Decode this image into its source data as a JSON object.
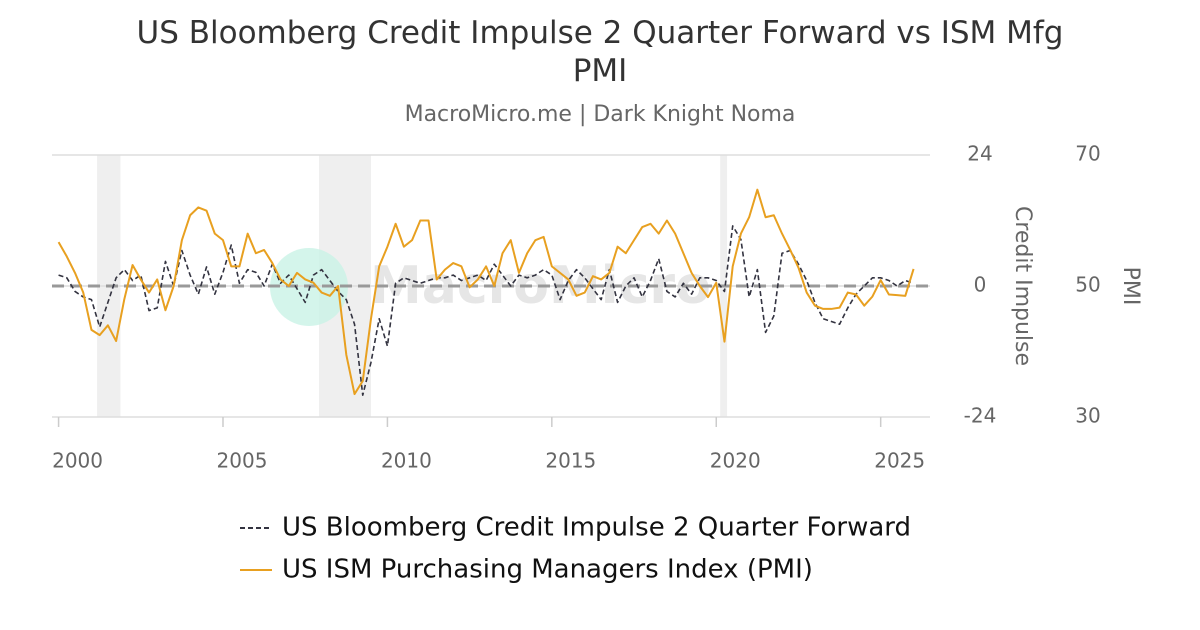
{
  "chart_data": {
    "type": "line",
    "title": "US Bloomberg Credit Impulse 2 Quarter Forward vs ISM Mfg PMI",
    "subtitle": "MacroMicro.me | Dark Knight Noma",
    "watermark": "MacroMicro",
    "y_label": "Credit Impulse",
    "y2_label": "PMI",
    "xlim": [
      1999.8,
      2026.5
    ],
    "xticks": [
      2000,
      2005,
      2010,
      2015,
      2020,
      2025
    ],
    "ylim": [
      -24,
      24
    ],
    "yticks": [
      -24,
      0,
      24
    ],
    "y2lim": [
      30,
      70
    ],
    "y2ticks": [
      30,
      50,
      70
    ],
    "grid": true,
    "recessions": [
      [
        2001.17,
        2001.88
      ],
      [
        2007.92,
        2009.5
      ],
      [
        2020.12,
        2020.33
      ]
    ],
    "x": [
      2000,
      2000.25,
      2000.5,
      2000.75,
      2001,
      2001.25,
      2001.5,
      2001.75,
      2002,
      2002.25,
      2002.5,
      2002.75,
      2003,
      2003.25,
      2003.5,
      2003.75,
      2004,
      2004.25,
      2004.5,
      2004.75,
      2005,
      2005.25,
      2005.5,
      2005.75,
      2006,
      2006.25,
      2006.5,
      2006.75,
      2007,
      2007.25,
      2007.5,
      2007.75,
      2008,
      2008.25,
      2008.5,
      2008.75,
      2009,
      2009.25,
      2009.5,
      2009.75,
      2010,
      2010.25,
      2010.5,
      2010.75,
      2011,
      2011.25,
      2011.5,
      2011.75,
      2012,
      2012.25,
      2012.5,
      2012.75,
      2013,
      2013.25,
      2013.5,
      2013.75,
      2014,
      2014.25,
      2014.5,
      2014.75,
      2015,
      2015.25,
      2015.5,
      2015.75,
      2016,
      2016.25,
      2016.5,
      2016.75,
      2017,
      2017.25,
      2017.5,
      2017.75,
      2018,
      2018.25,
      2018.5,
      2018.75,
      2019,
      2019.25,
      2019.5,
      2019.75,
      2020,
      2020.25,
      2020.5,
      2020.75,
      2021,
      2021.25,
      2021.5,
      2021.75,
      2022,
      2022.25,
      2022.5,
      2022.75,
      2023,
      2023.25,
      2023.5,
      2023.75,
      2024,
      2024.25,
      2024.5,
      2024.75,
      2025,
      2025.25,
      2025.5,
      2025.75,
      2026
    ],
    "series": [
      {
        "name": "US Bloomberg Credit Impulse 2 Quarter Forward",
        "color": "#333340",
        "dash": true,
        "values": [
          2,
          1.5,
          -1,
          -2,
          -2.5,
          -7.5,
          -3,
          1.5,
          3,
          1,
          2,
          -4.5,
          -4,
          4.5,
          0,
          6.5,
          2,
          -1.5,
          3.5,
          -1.5,
          2.5,
          7.5,
          0.5,
          3,
          2.5,
          0,
          4,
          0.5,
          2,
          -0.5,
          -3,
          2,
          3,
          1,
          -1,
          -2.5,
          -7,
          -20,
          -14,
          -6,
          -11,
          0.5,
          1.5,
          1,
          0.5,
          1,
          1.5,
          1.5,
          2,
          1,
          1.5,
          2,
          1,
          4,
          2,
          0,
          2,
          1.5,
          2,
          3,
          2,
          -2.5,
          1,
          3,
          1.5,
          -0.5,
          -2.5,
          3,
          -3,
          0,
          1.5,
          -2,
          1,
          5,
          -1,
          -2,
          0.5,
          -1.5,
          1.5,
          1.5,
          1,
          -1,
          11,
          8.5,
          -2,
          3,
          -8.5,
          -5.5,
          6,
          6.5,
          4,
          1,
          -3,
          -6,
          -6.5,
          -7,
          -4,
          -1.5,
          0,
          1.5,
          1.5,
          1,
          0,
          1,
          0.5
        ]
      },
      {
        "name": "US ISM Purchasing Managers Index (PMI)",
        "color": "#e8a020",
        "axis": "y2",
        "values": [
          56.7,
          54.5,
          52,
          49,
          43.3,
          42.5,
          44,
          41.6,
          48,
          53.2,
          51,
          49,
          51,
          46.3,
          50,
          57,
          60.8,
          62,
          61.5,
          58,
          57,
          53,
          53,
          58,
          55,
          55.5,
          53.5,
          51,
          50,
          52,
          51,
          50.5,
          49,
          48.5,
          50,
          39.5,
          33.5,
          35.5,
          45,
          53,
          56,
          59.5,
          56,
          57,
          60,
          60,
          51,
          52.5,
          53.5,
          53,
          49.8,
          51,
          53,
          50,
          55,
          57,
          52,
          55,
          57,
          57.5,
          53,
          52,
          51,
          48.5,
          49,
          51.5,
          51,
          52,
          56,
          55,
          57,
          59,
          59.5,
          58,
          60,
          58,
          55,
          52,
          50,
          48.3,
          50.5,
          41.5,
          53,
          58,
          60.5,
          64.7,
          60.5,
          60.8,
          58,
          55.5,
          52.8,
          49,
          47,
          46.5,
          46.5,
          46.7,
          49,
          48.7,
          47,
          48.4,
          50.9,
          48.7,
          48.6,
          48.5,
          52.6
        ]
      }
    ]
  }
}
